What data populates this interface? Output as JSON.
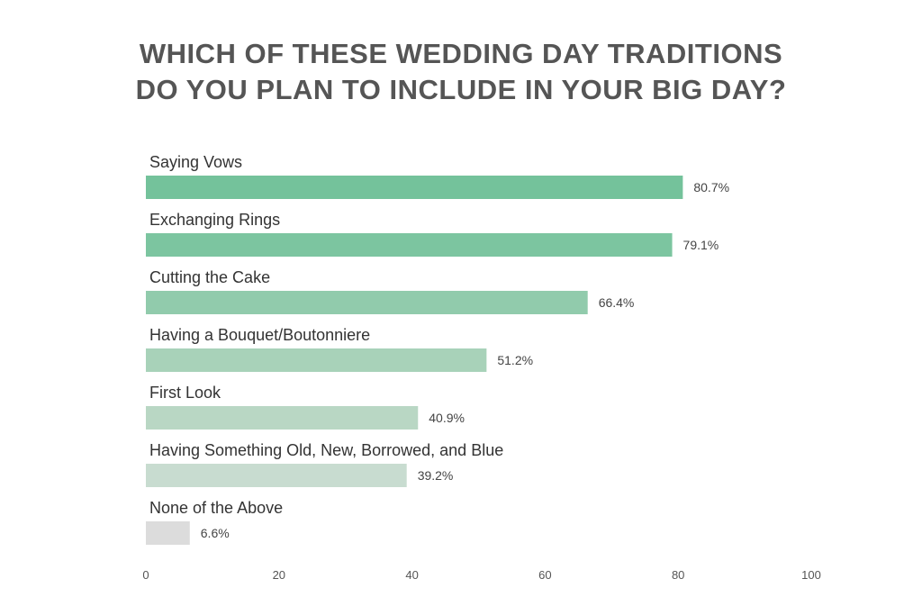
{
  "chart_data": {
    "type": "bar",
    "orientation": "horizontal",
    "title_lines": [
      "WHICH OF THESE WEDDING DAY TRADITIONS",
      "DO YOU PLAN TO INCLUDE IN YOUR BIG DAY?"
    ],
    "categories": [
      "Saying Vows",
      "Exchanging Rings",
      "Cutting the Cake",
      "Having a Bouquet/Boutonniere",
      "First Look",
      "Having Something Old, New, Borrowed, and Blue",
      "None of the Above"
    ],
    "values": [
      80.7,
      79.1,
      66.4,
      51.2,
      40.9,
      39.2,
      6.6
    ],
    "value_labels": [
      "80.7%",
      "79.1%",
      "66.4%",
      "51.2%",
      "40.9%",
      "39.2%",
      "6.6%"
    ],
    "bar_colors": [
      "#74c29b",
      "#7cc5a0",
      "#91cbac",
      "#a8d2b9",
      "#b9d7c4",
      "#c8dcd0",
      "#dcdcdc"
    ],
    "xlim": [
      0,
      100
    ],
    "xticks": [
      0,
      20,
      40,
      60,
      80,
      100
    ],
    "xlabel": "",
    "ylabel": "",
    "grid": false,
    "legend": "none"
  }
}
